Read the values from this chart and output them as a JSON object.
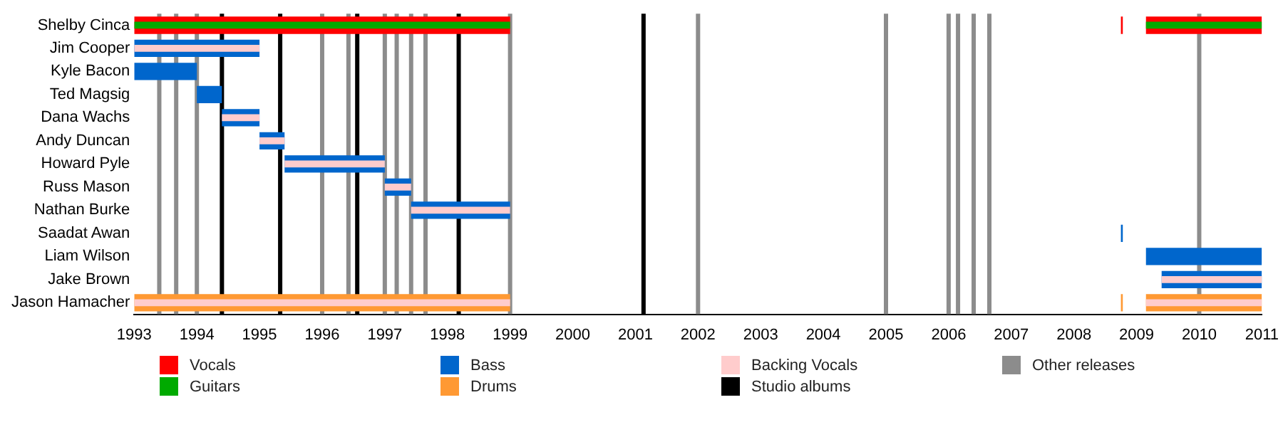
{
  "chart_data": {
    "type": "bar",
    "orientation": "horizontal",
    "categories": [
      "Shelby Cinca",
      "Jim Cooper",
      "Kyle Bacon",
      "Ted Magsig",
      "Dana Wachs",
      "Andy Duncan",
      "Howard Pyle",
      "Russ Mason",
      "Nathan Burke",
      "Saadat Awan",
      "Liam Wilson",
      "Jake Brown",
      "Jason Hamacher"
    ],
    "xlim": [
      1993,
      2011
    ],
    "xticks": [
      1993,
      1994,
      1995,
      1996,
      1997,
      1998,
      1999,
      2000,
      2001,
      2002,
      2003,
      2004,
      2005,
      2006,
      2007,
      2008,
      2009,
      2010,
      2011
    ],
    "grid": false,
    "legend": "bottom",
    "series": [
      {
        "name": "Vocals",
        "color": "#ff0000",
        "base": [
          1993,
          null,
          null,
          null,
          null,
          null,
          null,
          null,
          null,
          null,
          null,
          null,
          null
        ],
        "values": [
          6,
          null,
          null,
          null,
          null,
          null,
          null,
          null,
          null,
          null,
          null,
          null,
          null
        ]
      },
      {
        "color": "#ff0000",
        "base": [
          2009.15,
          null,
          null,
          null,
          null,
          null,
          null,
          null,
          null,
          null,
          null,
          null,
          null
        ],
        "values": [
          1.85,
          null,
          null,
          null,
          null,
          null,
          null,
          null,
          null,
          null,
          null,
          null,
          null
        ]
      },
      {
        "color": "#ff0000",
        "base": [
          2008.75,
          null,
          null,
          null,
          null,
          null,
          null,
          null,
          null,
          null,
          null,
          null,
          null
        ],
        "values": [
          0.03,
          null,
          null,
          null,
          null,
          null,
          null,
          null,
          null,
          null,
          null,
          null,
          null
        ]
      },
      {
        "name": "Guitars",
        "color": "#00aa00",
        "base": [
          1993,
          null,
          null,
          null,
          null,
          null,
          null,
          null,
          null,
          null,
          null,
          null,
          null
        ],
        "values": [
          6,
          null,
          null,
          null,
          null,
          null,
          null,
          null,
          null,
          null,
          null,
          null,
          null
        ]
      },
      {
        "color": "#00aa00",
        "base": [
          2009.15,
          null,
          null,
          null,
          null,
          null,
          null,
          null,
          null,
          null,
          null,
          null,
          null
        ],
        "values": [
          1.85,
          null,
          null,
          null,
          null,
          null,
          null,
          null,
          null,
          null,
          null,
          null,
          null
        ]
      },
      {
        "name": "Bass",
        "color": "#0066cc",
        "base": [
          null,
          1993,
          1993,
          1994,
          1994.4,
          1995,
          1995.4,
          1997,
          1997.42,
          2008.75,
          2009.15,
          2009.4,
          null
        ],
        "values": [
          null,
          2,
          1,
          0.4,
          0.6,
          0.4,
          1.6,
          0.42,
          1.58,
          0.03,
          1.85,
          1.6,
          null
        ]
      },
      {
        "name": "Drums",
        "color": "#ff9933",
        "base": [
          null,
          null,
          null,
          null,
          null,
          null,
          null,
          null,
          null,
          null,
          null,
          null,
          1993
        ],
        "values": [
          null,
          null,
          null,
          null,
          null,
          null,
          null,
          null,
          null,
          null,
          null,
          null,
          6
        ]
      },
      {
        "color": "#ff9933",
        "base": [
          null,
          null,
          null,
          null,
          null,
          null,
          null,
          null,
          null,
          null,
          null,
          null,
          2009.15
        ],
        "values": [
          null,
          null,
          null,
          null,
          null,
          null,
          null,
          null,
          null,
          null,
          null,
          null,
          1.85
        ]
      },
      {
        "color": "#ff9933",
        "base": [
          null,
          null,
          null,
          null,
          null,
          null,
          null,
          null,
          null,
          null,
          null,
          null,
          2008.75
        ],
        "values": [
          null,
          null,
          null,
          null,
          null,
          null,
          null,
          null,
          null,
          null,
          null,
          null,
          0.03
        ]
      },
      {
        "name": "Backing Vocals",
        "color": "#ffcccc",
        "base": [
          null,
          1993,
          null,
          null,
          1994.4,
          1995,
          1995.4,
          1997,
          1997.42,
          null,
          null,
          2009.4,
          1993
        ],
        "values": [
          null,
          2,
          null,
          null,
          0.6,
          0.4,
          1.6,
          0.42,
          1.58,
          null,
          null,
          1.6,
          6
        ]
      },
      {
        "color": "#ffcccc",
        "base": [
          null,
          null,
          null,
          null,
          null,
          null,
          null,
          null,
          null,
          null,
          null,
          null,
          2009.15
        ],
        "values": [
          null,
          null,
          null,
          null,
          null,
          null,
          null,
          null,
          null,
          null,
          null,
          null,
          1.85
        ]
      }
    ],
    "ref_lines": [
      {
        "axis": "x",
        "value": 1994.4,
        "label": "Studio albums",
        "color": "#000000"
      },
      {
        "axis": "x",
        "value": 1995.33,
        "color": "#000000"
      },
      {
        "axis": "x",
        "value": 1996.56,
        "color": "#000000"
      },
      {
        "axis": "x",
        "value": 1998.18,
        "color": "#000000"
      },
      {
        "axis": "x",
        "value": 2001.13,
        "color": "#000000"
      },
      {
        "axis": "x",
        "value": 1993.4,
        "label": "Other releases",
        "color": "#8c8c8c"
      },
      {
        "axis": "x",
        "value": 1993.67,
        "color": "#8c8c8c"
      },
      {
        "axis": "x",
        "value": 1994,
        "color": "#8c8c8c"
      },
      {
        "axis": "x",
        "value": 1996,
        "color": "#8c8c8c"
      },
      {
        "axis": "x",
        "value": 1996.42,
        "color": "#8c8c8c"
      },
      {
        "axis": "x",
        "value": 1997,
        "color": "#8c8c8c"
      },
      {
        "axis": "x",
        "value": 1997.19,
        "color": "#8c8c8c"
      },
      {
        "axis": "x",
        "value": 1997.42,
        "color": "#8c8c8c"
      },
      {
        "axis": "x",
        "value": 1997.65,
        "color": "#8c8c8c"
      },
      {
        "axis": "x",
        "value": 1999,
        "color": "#8c8c8c"
      },
      {
        "axis": "x",
        "value": 2002,
        "color": "#8c8c8c"
      },
      {
        "axis": "x",
        "value": 2005,
        "color": "#8c8c8c"
      },
      {
        "axis": "x",
        "value": 2006,
        "color": "#8c8c8c"
      },
      {
        "axis": "x",
        "value": 2006.15,
        "color": "#8c8c8c"
      },
      {
        "axis": "x",
        "value": 2006.4,
        "color": "#8c8c8c"
      },
      {
        "axis": "x",
        "value": 2006.65,
        "color": "#8c8c8c"
      },
      {
        "axis": "x",
        "value": 2010,
        "color": "#8c8c8c"
      }
    ]
  }
}
